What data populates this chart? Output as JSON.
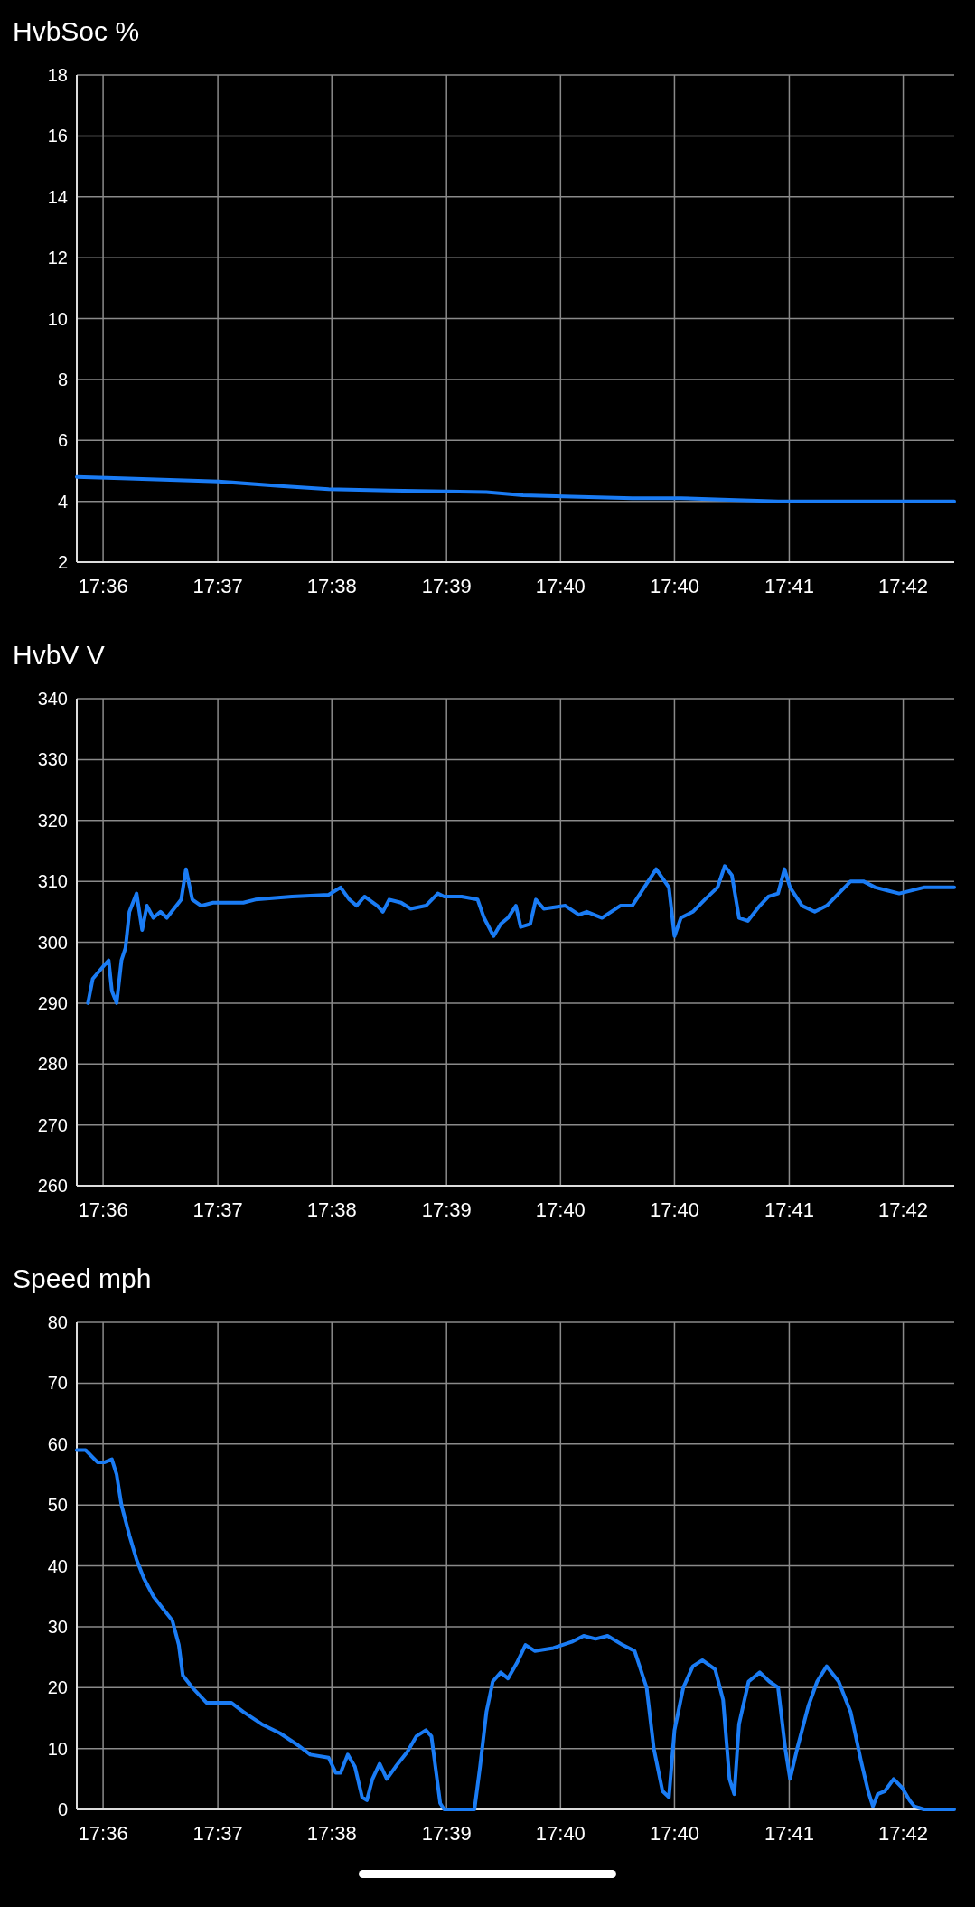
{
  "chart_data": [
    {
      "type": "line",
      "title": "HvbSoc %",
      "xlim": [
        17.5984,
        17.7085
      ],
      "xticks": [
        {
          "value": 17.6017,
          "label": "17:36"
        },
        {
          "value": 17.6161,
          "label": "17:37"
        },
        {
          "value": 17.6304,
          "label": "17:38"
        },
        {
          "value": 17.6448,
          "label": "17:39"
        },
        {
          "value": 17.6591,
          "label": "17:40"
        },
        {
          "value": 17.6734,
          "label": "17:40"
        },
        {
          "value": 17.6878,
          "label": "17:41"
        },
        {
          "value": 17.7021,
          "label": "17:42"
        }
      ],
      "ylim": [
        2,
        18
      ],
      "yticks": [
        2,
        4,
        6,
        8,
        10,
        12,
        14,
        16,
        18
      ],
      "grid": true,
      "series": [
        {
          "color": "#1a7cf5",
          "x": [
            17.5984,
            17.604,
            17.6101,
            17.6162,
            17.6239,
            17.63,
            17.6376,
            17.6498,
            17.6544,
            17.6605,
            17.6681,
            17.6742,
            17.6803,
            17.6864,
            17.6955,
            17.7085
          ],
          "values": [
            4.8,
            4.75,
            4.7,
            4.65,
            4.5,
            4.4,
            4.35,
            4.3,
            4.2,
            4.15,
            4.1,
            4.1,
            4.05,
            4.0,
            4.0,
            4.0
          ]
        }
      ]
    },
    {
      "type": "line",
      "title": "HvbV V",
      "xlim": [
        17.5984,
        17.7085
      ],
      "xticks": [
        {
          "value": 17.6017,
          "label": "17:36"
        },
        {
          "value": 17.6161,
          "label": "17:37"
        },
        {
          "value": 17.6304,
          "label": "17:38"
        },
        {
          "value": 17.6448,
          "label": "17:39"
        },
        {
          "value": 17.6591,
          "label": "17:40"
        },
        {
          "value": 17.6734,
          "label": "17:40"
        },
        {
          "value": 17.6878,
          "label": "17:41"
        },
        {
          "value": 17.7021,
          "label": "17:42"
        }
      ],
      "ylim": [
        260,
        340
      ],
      "yticks": [
        260,
        270,
        280,
        290,
        300,
        310,
        320,
        330,
        340
      ],
      "grid": true,
      "series": [
        {
          "color": "#1a7cf5",
          "x": [
            17.5998,
            17.6004,
            17.6017,
            17.6024,
            17.6028,
            17.6034,
            17.604,
            17.6045,
            17.605,
            17.6059,
            17.6066,
            17.6072,
            17.608,
            17.6089,
            17.6097,
            17.6109,
            17.6115,
            17.6121,
            17.6129,
            17.614,
            17.6155,
            17.6193,
            17.6208,
            17.6254,
            17.63,
            17.6315,
            17.6326,
            17.6335,
            17.6345,
            17.6361,
            17.6368,
            17.6376,
            17.6391,
            17.6403,
            17.6422,
            17.6437,
            17.6445,
            17.6467,
            17.6487,
            17.6495,
            17.6507,
            17.6516,
            17.6525,
            17.6535,
            17.6541,
            17.6553,
            17.656,
            17.657,
            17.6597,
            17.6614,
            17.6624,
            17.6643,
            17.6666,
            17.6681,
            17.6696,
            17.6711,
            17.6727,
            17.6734,
            17.6742,
            17.6757,
            17.6772,
            17.6788,
            17.6797,
            17.6806,
            17.6815,
            17.6826,
            17.6841,
            17.6852,
            17.6864,
            17.6872,
            17.6879,
            17.6894,
            17.691,
            17.6925,
            17.694,
            17.6955,
            17.6971,
            17.6986,
            17.7001,
            17.7016,
            17.7047,
            17.7085
          ],
          "values": [
            290,
            294,
            296,
            297,
            292,
            290,
            297,
            299,
            305,
            308,
            302,
            306,
            304,
            305,
            304,
            306,
            307,
            312,
            307,
            306,
            306.5,
            306.5,
            307,
            307.5,
            307.8,
            309,
            307,
            306,
            307.5,
            306,
            305,
            307,
            306.5,
            305.5,
            306,
            308,
            307.5,
            307.5,
            307,
            304,
            301,
            303,
            304,
            306,
            302.5,
            303,
            307,
            305.5,
            306,
            304.5,
            305,
            304,
            306,
            306,
            309,
            312,
            309,
            301,
            304,
            305,
            307,
            309,
            312.5,
            311,
            304,
            303.5,
            306,
            307.5,
            308,
            312,
            309,
            306,
            305,
            306,
            308,
            310,
            310,
            309,
            308.5,
            308,
            309,
            309
          ]
        }
      ]
    },
    {
      "type": "line",
      "title": "Speed mph",
      "xlim": [
        17.5984,
        17.7085
      ],
      "xticks": [
        {
          "value": 17.6017,
          "label": "17:36"
        },
        {
          "value": 17.6161,
          "label": "17:37"
        },
        {
          "value": 17.6304,
          "label": "17:38"
        },
        {
          "value": 17.6448,
          "label": "17:39"
        },
        {
          "value": 17.6591,
          "label": "17:40"
        },
        {
          "value": 17.6734,
          "label": "17:40"
        },
        {
          "value": 17.6878,
          "label": "17:41"
        },
        {
          "value": 17.7021,
          "label": "17:42"
        }
      ],
      "ylim": [
        0,
        80
      ],
      "yticks": [
        0,
        10,
        20,
        30,
        40,
        50,
        60,
        70,
        80
      ],
      "grid": true,
      "series": [
        {
          "color": "#1a7cf5",
          "x": [
            17.5984,
            17.5995,
            17.601,
            17.6019,
            17.6028,
            17.6034,
            17.604,
            17.605,
            17.6059,
            17.6068,
            17.608,
            17.6092,
            17.6104,
            17.6112,
            17.6117,
            17.6129,
            17.6147,
            17.6178,
            17.6193,
            17.6216,
            17.6239,
            17.6262,
            17.6277,
            17.63,
            17.6309,
            17.6315,
            17.6324,
            17.6333,
            17.6342,
            17.6348,
            17.6355,
            17.6364,
            17.6373,
            17.6384,
            17.6399,
            17.641,
            17.6422,
            17.6429,
            17.644,
            17.6445,
            17.6483,
            17.649,
            17.6498,
            17.6506,
            17.6516,
            17.6525,
            17.6536,
            17.6547,
            17.6559,
            17.6582,
            17.6605,
            17.662,
            17.6635,
            17.665,
            17.6669,
            17.6684,
            17.6699,
            17.6708,
            17.6719,
            17.6727,
            17.6734,
            17.6745,
            17.6757,
            17.6769,
            17.6785,
            17.6795,
            17.6803,
            17.6809,
            17.6815,
            17.6827,
            17.6841,
            17.6853,
            17.6864,
            17.6873,
            17.6879,
            17.6888,
            17.6902,
            17.6913,
            17.6925,
            17.694,
            17.6955,
            17.6968,
            17.6977,
            17.6983,
            17.6989,
            17.6998,
            17.7009,
            17.702,
            17.7029,
            17.7035,
            17.7047,
            17.7085
          ],
          "values": [
            59,
            59,
            57,
            57,
            57.5,
            55,
            50,
            45,
            41,
            38,
            35,
            33,
            31,
            27,
            22,
            20,
            17.5,
            17.5,
            16,
            14,
            12.5,
            10.5,
            9,
            8.5,
            6,
            6,
            9,
            7,
            2,
            1.5,
            5,
            7.5,
            5,
            7,
            9.5,
            12,
            13,
            12,
            1,
            0,
            0,
            7,
            16,
            21,
            22.5,
            21.5,
            24,
            27,
            26,
            26.5,
            27.5,
            28.5,
            28,
            28.5,
            27,
            26,
            20,
            10,
            3,
            2,
            13,
            20,
            23.5,
            24.5,
            23,
            18,
            5,
            2.5,
            14,
            21,
            22.5,
            21,
            20,
            10,
            5,
            10,
            17,
            21,
            23.5,
            21,
            16,
            8,
            3,
            0.5,
            2.5,
            3,
            5,
            3.5,
            1.5,
            0.5,
            0,
            0
          ]
        }
      ]
    }
  ]
}
